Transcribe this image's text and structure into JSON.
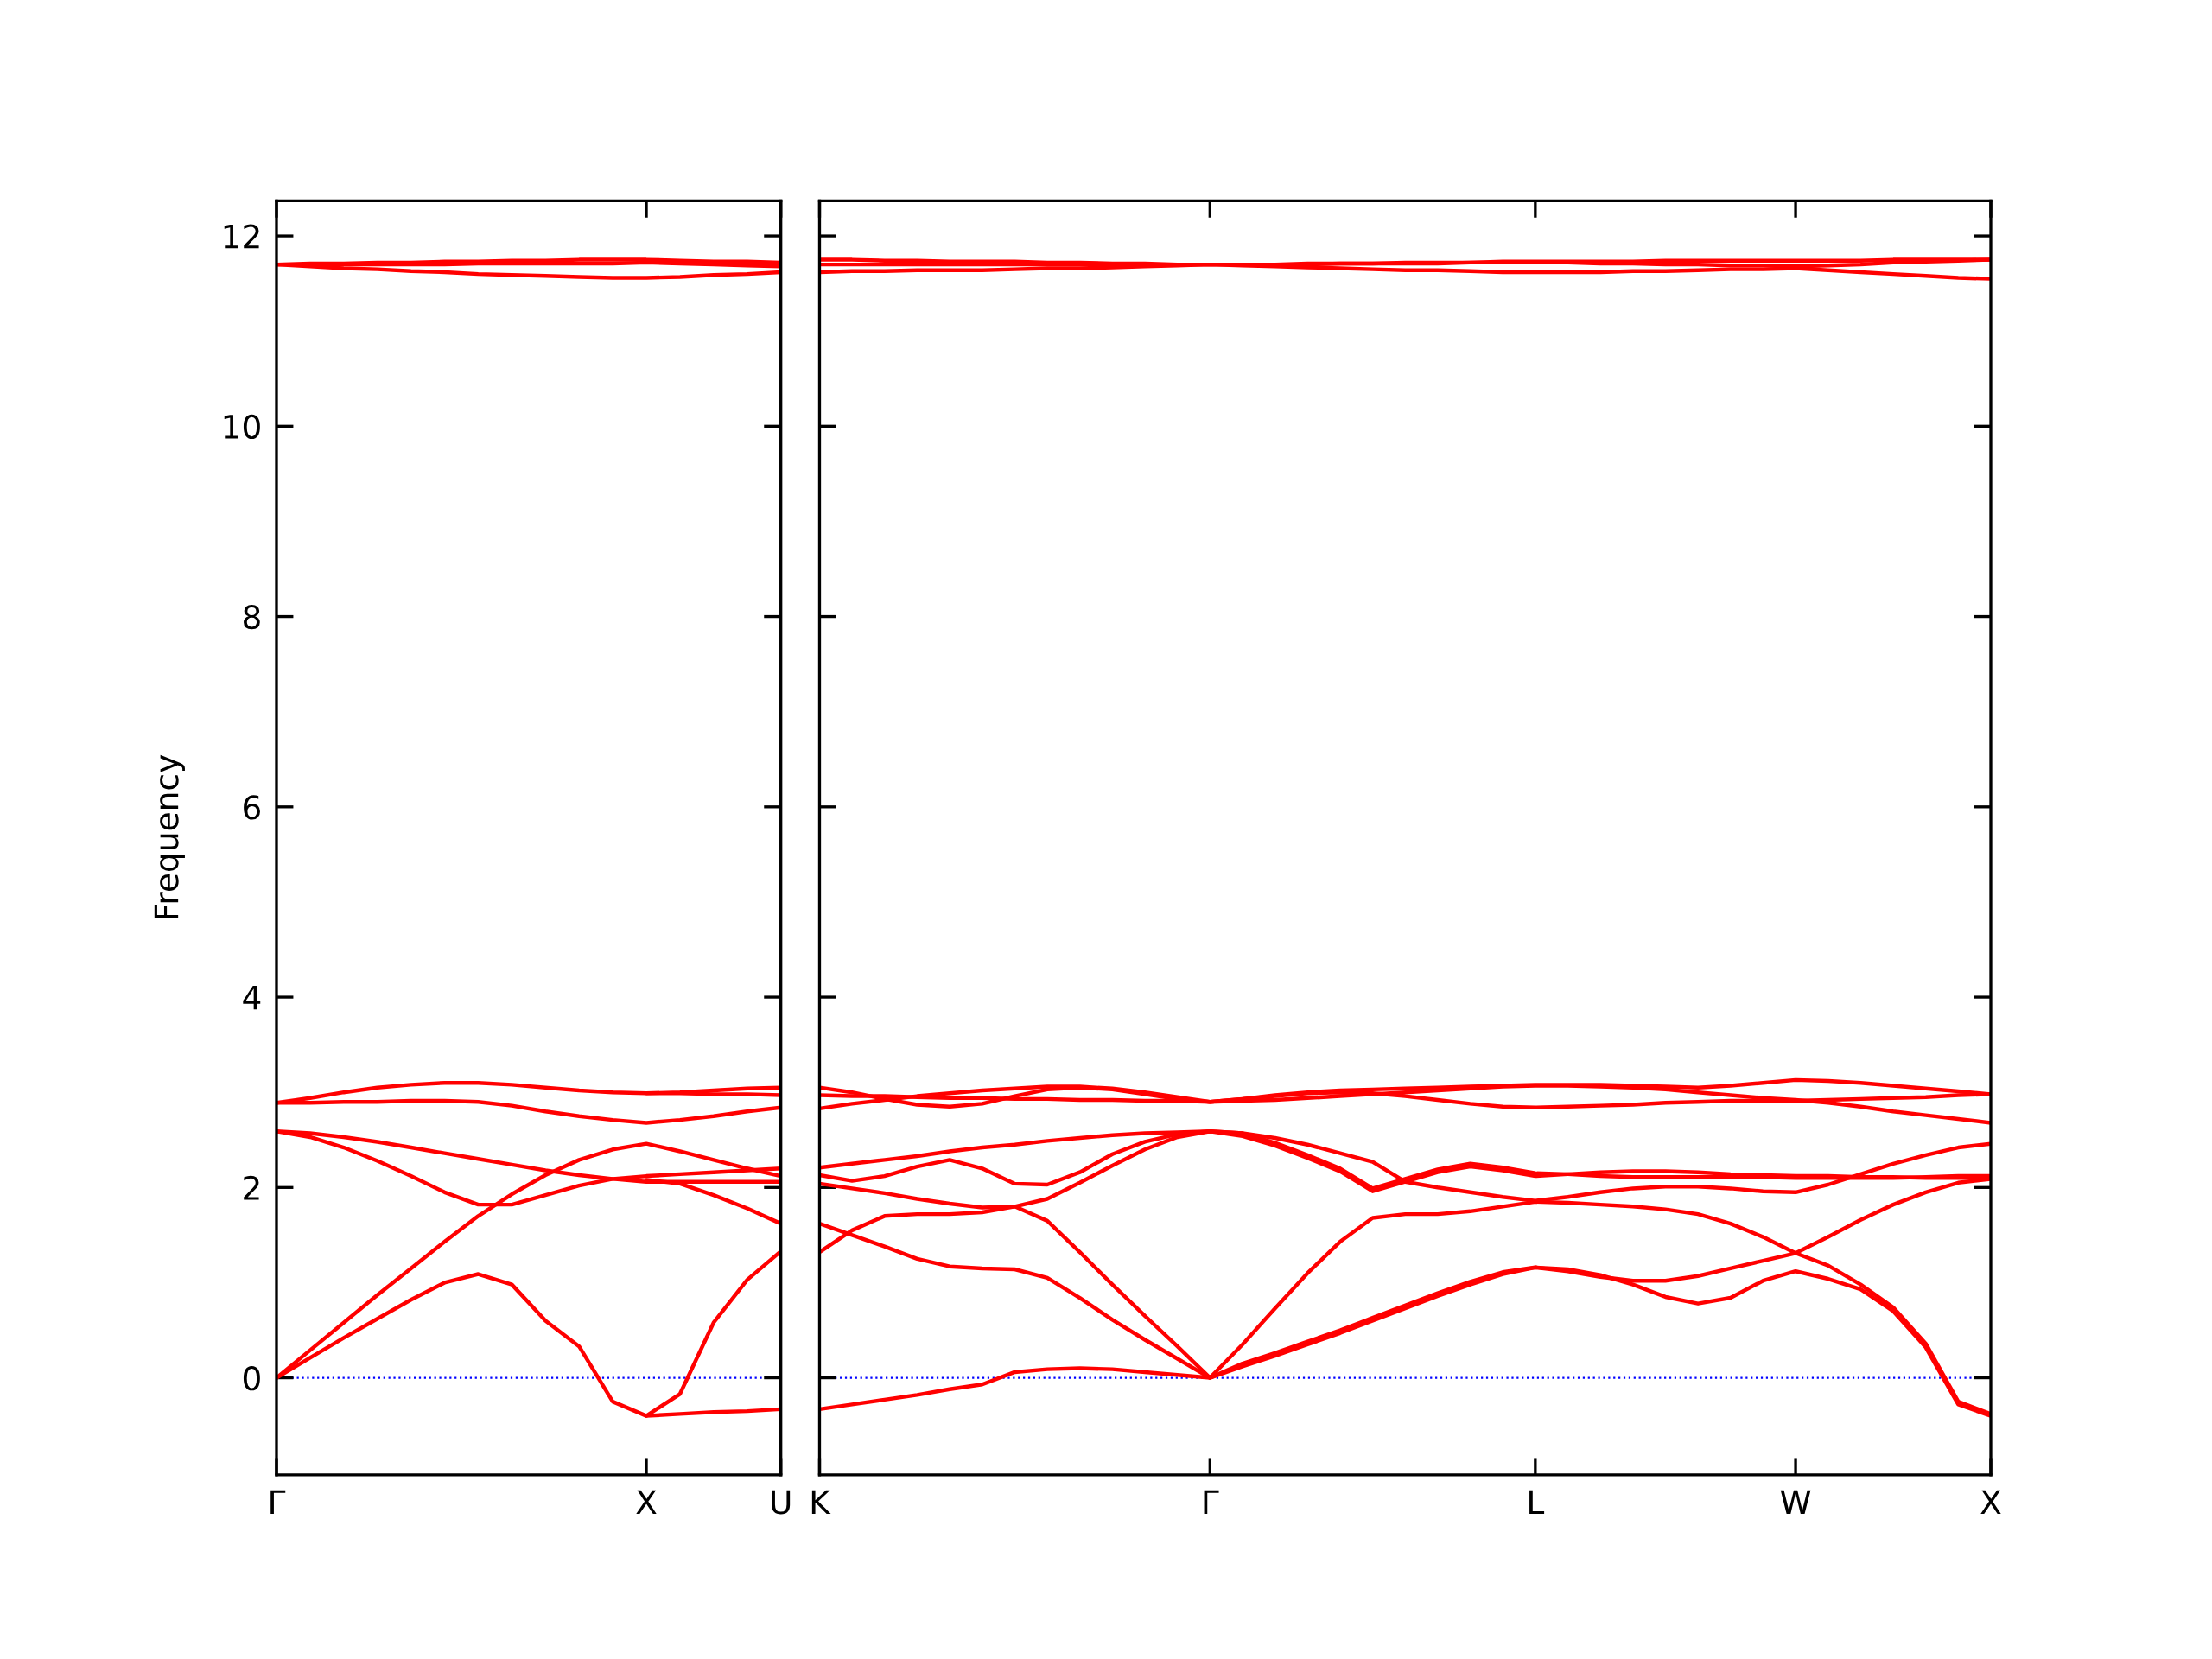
{
  "chart_data": [
    {
      "type": "line",
      "ylabel": "Frequency",
      "ylim": [
        -1.02,
        12.37
      ],
      "categories": [
        "Γ",
        null,
        null,
        null,
        null,
        null,
        null,
        null,
        null,
        null,
        null,
        "X",
        null,
        null,
        null,
        "U"
      ],
      "yticks": [
        0,
        2,
        4,
        6,
        8,
        10,
        12
      ],
      "grid": false,
      "marker": "none",
      "line_style": "solid",
      "ref_lines": [
        {
          "axis": "y",
          "value": 0,
          "color": "#0000ff",
          "line_style": "dotted"
        }
      ],
      "series": [
        {
          "color": "#ff0000",
          "values": [
            0,
            0.21,
            0.42,
            0.62,
            0.82,
            1.0,
            1.09,
            0.98,
            0.6,
            0.33,
            -0.25,
            -0.4,
            -0.38,
            -0.36,
            -0.35,
            -0.33
          ]
        },
        {
          "color": "#ff0000",
          "values": [
            null,
            null,
            null,
            null,
            null,
            null,
            null,
            null,
            null,
            null,
            null,
            -0.4,
            -0.17,
            0.58,
            1.03,
            1.33
          ]
        },
        {
          "color": "#ff0000",
          "values": [
            0,
            0.29,
            0.58,
            0.87,
            1.15,
            1.43,
            1.7,
            1.93,
            2.13,
            2.29,
            2.4,
            2.46,
            2.38,
            2.29,
            2.2,
            2.12
          ]
        },
        {
          "color": "#ff0000",
          "values": [
            2.59,
            2.53,
            2.42,
            2.28,
            2.12,
            1.95,
            1.82,
            1.82,
            1.92,
            2.02,
            2.09,
            2.12,
            2.14,
            2.16,
            2.18,
            2.2
          ]
        },
        {
          "color": "#ff0000",
          "values": [
            2.59,
            2.57,
            2.53,
            2.48,
            2.42,
            2.36,
            2.3,
            2.24,
            2.18,
            2.13,
            2.09,
            2.06,
            2.06,
            2.06,
            2.06,
            2.06
          ]
        },
        {
          "color": "#ff0000",
          "values": [
            null,
            null,
            null,
            null,
            null,
            null,
            null,
            null,
            null,
            null,
            null,
            2.08,
            2.04,
            1.92,
            1.78,
            1.62
          ]
        },
        {
          "color": "#ff0000",
          "values": [
            2.89,
            2.94,
            3.0,
            3.05,
            3.08,
            3.1,
            3.1,
            3.08,
            3.05,
            3.02,
            3.0,
            2.99,
            3.0,
            3.02,
            3.04,
            3.05
          ]
        },
        {
          "color": "#ff0000",
          "values": [
            2.89,
            2.89,
            2.9,
            2.9,
            2.91,
            2.91,
            2.9,
            2.86,
            2.8,
            2.75,
            2.71,
            2.68,
            2.71,
            2.75,
            2.8,
            2.84
          ]
        },
        {
          "color": "#ff0000",
          "values": [
            null,
            null,
            null,
            null,
            null,
            null,
            null,
            null,
            null,
            null,
            null,
            2.99,
            2.99,
            2.98,
            2.98,
            2.97
          ]
        },
        {
          "color": "#ff0000",
          "values": [
            11.7,
            11.71,
            11.71,
            11.72,
            11.72,
            11.73,
            11.73,
            11.74,
            11.74,
            11.75,
            11.75,
            11.75,
            11.74,
            11.73,
            11.73,
            11.72
          ]
        },
        {
          "color": "#ff0000",
          "values": [
            11.7,
            11.68,
            11.66,
            11.65,
            11.63,
            11.62,
            11.6,
            11.59,
            11.58,
            11.57,
            11.56,
            11.56,
            11.57,
            11.59,
            11.6,
            11.62
          ]
        },
        {
          "color": "#ff0000",
          "values": [
            11.7,
            11.7,
            11.7,
            11.7,
            11.7,
            11.7,
            11.71,
            11.71,
            11.71,
            11.71,
            11.71,
            11.72,
            11.71,
            11.7,
            11.69,
            11.68
          ]
        }
      ]
    },
    {
      "type": "line",
      "ylim": [
        -1.02,
        12.37
      ],
      "tick_labels": "x",
      "categories": [
        "K",
        null,
        null,
        null,
        null,
        null,
        null,
        null,
        null,
        null,
        null,
        null,
        "Γ",
        null,
        null,
        null,
        null,
        null,
        null,
        null,
        null,
        null,
        "L",
        null,
        null,
        null,
        null,
        null,
        null,
        null,
        "W",
        null,
        null,
        null,
        null,
        null,
        "X"
      ],
      "yticks": [
        0,
        2,
        4,
        6,
        8,
        10,
        12
      ],
      "grid": false,
      "marker": "none",
      "line_style": "solid",
      "ref_lines": [
        {
          "axis": "y",
          "value": 0,
          "color": "#0000ff",
          "line_style": "dotted"
        }
      ],
      "series": [
        {
          "color": "#ff0000",
          "values": [
            -0.33,
            -0.28,
            -0.23,
            -0.18,
            -0.12,
            -0.07,
            0.06,
            0.09,
            0.1,
            0.09,
            0.06,
            0.03,
            0,
            0.12,
            0.23,
            0.35,
            0.47,
            0.6,
            0.73,
            0.86,
            0.98,
            1.09,
            1.16,
            1.14,
            1.08,
            0.98,
            0.85,
            0.78,
            0.84,
            1.02,
            1.12,
            1.04,
            0.93,
            0.7,
            0.32,
            -0.28,
            -0.4
          ]
        },
        {
          "color": "#ff0000",
          "values": [
            1.62,
            1.5,
            1.38,
            1.25,
            1.17,
            1.15,
            1.14,
            1.05,
            0.84,
            0.61,
            0.4,
            0.2,
            0,
            0.15,
            0.26,
            0.38,
            0.5,
            0.63,
            0.76,
            0.89,
            1.01,
            1.11,
            1.16,
            1.12,
            1.06,
            1.02,
            1.02,
            1.07,
            1.15,
            1.23,
            1.31,
            1.18,
            0.98,
            0.74,
            0.36,
            -0.25,
            -0.38
          ]
        },
        {
          "color": "#ff0000",
          "values": [
            1.32,
            1.55,
            1.7,
            1.72,
            1.72,
            1.74,
            1.8,
            1.65,
            1.32,
            0.98,
            0.65,
            0.33,
            0,
            0.35,
            0.73,
            1.1,
            1.43,
            1.68,
            1.72,
            1.72,
            1.75,
            1.8,
            1.85,
            1.84,
            1.82,
            1.8,
            1.77,
            1.72,
            1.62,
            1.48,
            1.31,
            1.48,
            1.66,
            1.82,
            1.95,
            2.05,
            2.09
          ]
        },
        {
          "color": "#ff0000",
          "values": [
            2.04,
            1.99,
            1.94,
            1.88,
            1.83,
            1.79,
            1.8,
            1.88,
            2.05,
            2.23,
            2.4,
            2.53,
            2.59,
            2.57,
            2.52,
            2.45,
            2.36,
            2.27,
            2.06,
            2.0,
            1.95,
            1.9,
            1.86,
            1.9,
            1.95,
            1.99,
            2.01,
            2.01,
            1.99,
            1.96,
            1.95,
            2.03,
            2.14,
            2.25,
            2.34,
            2.42,
            2.46
          ]
        },
        {
          "color": "#ff0000",
          "values": [
            2.13,
            2.07,
            2.12,
            2.22,
            2.29,
            2.2,
            2.04,
            2.03,
            2.16,
            2.35,
            2.48,
            2.56,
            2.59,
            2.54,
            2.44,
            2.31,
            2.17,
            1.96,
            2.06,
            2.16,
            2.22,
            2.18,
            2.12,
            2.14,
            2.16,
            2.17,
            2.17,
            2.16,
            2.14,
            2.13,
            2.12,
            2.12,
            2.11,
            2.11,
            2.1,
            2.1,
            2.1
          ]
        },
        {
          "color": "#ff0000",
          "values": [
            2.21,
            2.25,
            2.29,
            2.33,
            2.38,
            2.42,
            2.45,
            2.49,
            2.52,
            2.55,
            2.57,
            2.58,
            2.59,
            2.57,
            2.47,
            2.34,
            2.2,
            1.99,
            2.09,
            2.19,
            2.25,
            2.21,
            2.15,
            2.14,
            2.12,
            2.11,
            2.11,
            2.11,
            2.11,
            2.11,
            2.1,
            2.1,
            2.1,
            2.1,
            2.11,
            2.12,
            2.12
          ]
        },
        {
          "color": "#ff0000",
          "values": [
            3.05,
            3.0,
            2.93,
            2.87,
            2.85,
            2.88,
            2.96,
            3.03,
            3.05,
            3.03,
            2.98,
            2.93,
            2.9,
            2.93,
            2.97,
            3.0,
            3.02,
            3.03,
            3.04,
            3.05,
            3.06,
            3.07,
            3.08,
            3.08,
            3.08,
            3.07,
            3.06,
            3.05,
            3.07,
            3.1,
            3.13,
            3.12,
            3.1,
            3.07,
            3.04,
            3.01,
            2.98
          ]
        },
        {
          "color": "#ff0000",
          "values": [
            2.97,
            2.96,
            2.96,
            2.95,
            2.94,
            2.94,
            2.93,
            2.93,
            2.92,
            2.92,
            2.91,
            2.91,
            2.9,
            2.93,
            2.96,
            2.99,
            3.0,
            2.99,
            2.96,
            2.92,
            2.88,
            2.85,
            2.84,
            2.85,
            2.86,
            2.87,
            2.89,
            2.9,
            2.91,
            2.91,
            2.91,
            2.92,
            2.93,
            2.94,
            2.95,
            2.97,
            2.98
          ]
        },
        {
          "color": "#ff0000",
          "values": [
            2.83,
            2.88,
            2.92,
            2.96,
            2.99,
            3.02,
            3.04,
            3.06,
            3.06,
            3.04,
            3.0,
            2.95,
            2.9,
            2.91,
            2.92,
            2.94,
            2.96,
            2.98,
            3.0,
            3.02,
            3.04,
            3.06,
            3.07,
            3.07,
            3.06,
            3.05,
            3.03,
            3.0,
            2.97,
            2.94,
            2.92,
            2.89,
            2.85,
            2.8,
            2.76,
            2.72,
            2.68
          ]
        },
        {
          "color": "#ff0000",
          "values": [
            11.75,
            11.75,
            11.74,
            11.74,
            11.73,
            11.73,
            11.73,
            11.72,
            11.72,
            11.71,
            11.71,
            11.7,
            11.7,
            11.7,
            11.7,
            11.71,
            11.71,
            11.71,
            11.72,
            11.72,
            11.72,
            11.73,
            11.73,
            11.73,
            11.73,
            11.73,
            11.74,
            11.74,
            11.74,
            11.74,
            11.74,
            11.74,
            11.74,
            11.75,
            11.75,
            11.75,
            11.75
          ]
        },
        {
          "color": "#ff0000",
          "values": [
            11.7,
            11.7,
            11.7,
            11.7,
            11.7,
            11.7,
            11.7,
            11.7,
            11.7,
            11.7,
            11.7,
            11.7,
            11.7,
            11.7,
            11.7,
            11.7,
            11.71,
            11.71,
            11.71,
            11.71,
            11.72,
            11.72,
            11.72,
            11.72,
            11.71,
            11.71,
            11.7,
            11.7,
            11.69,
            11.69,
            11.68,
            11.69,
            11.7,
            11.72,
            11.73,
            11.74,
            11.75
          ]
        },
        {
          "color": "#ff0000",
          "values": [
            11.62,
            11.63,
            11.63,
            11.64,
            11.64,
            11.64,
            11.65,
            11.66,
            11.66,
            11.67,
            11.68,
            11.69,
            11.7,
            11.69,
            11.68,
            11.67,
            11.66,
            11.65,
            11.64,
            11.64,
            11.63,
            11.62,
            11.62,
            11.62,
            11.62,
            11.63,
            11.63,
            11.64,
            11.65,
            11.65,
            11.66,
            11.64,
            11.62,
            11.6,
            11.58,
            11.56,
            11.55
          ]
        }
      ]
    }
  ]
}
